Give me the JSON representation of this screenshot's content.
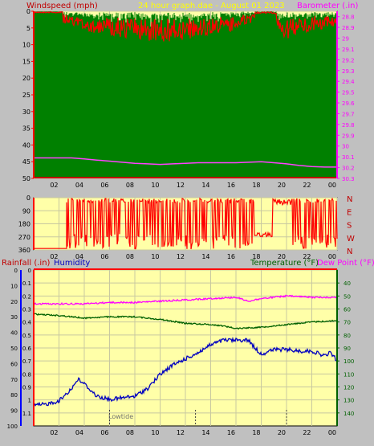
{
  "colors": {
    "background": "#c0c0c0",
    "plot_bg": "#ffffa8",
    "grid": "#c8c8a0",
    "windspeed": "#ff0000",
    "windgust_fill": "#0000ff",
    "windavg_fill": "#008000",
    "barometer": "#ff40ff",
    "direction": "#ff0000",
    "rainfall": "#ff0000",
    "humidity": "#0000c0",
    "temperature": "#006000",
    "dewpoint": "#ff00ff",
    "title": "#ffff00",
    "left_axis_wind": "#ff0000",
    "right_axis_baro": "#ff00ff",
    "rain_axis": "#ff0000",
    "hum_axis": "#0000ff",
    "temp_axis": "#006000"
  },
  "header": {
    "windspeed_label": "Windspeed (mph)",
    "title": "24 hour graph.dae - August 01 2023",
    "barometer_label": "Barometer (.in)"
  },
  "middle": {
    "labels": [
      "Rainfall (.in)",
      "Humidity",
      "Temperature (°F)",
      "Dew Point (°F)"
    ]
  },
  "bottom": {
    "lowtide_label": "Lowtide"
  },
  "chart_data": [
    {
      "id": "wind-baro",
      "type": "line",
      "x_ticks": [
        "02",
        "04",
        "06",
        "08",
        "10",
        "12",
        "14",
        "16",
        "18",
        "20",
        "22",
        "00"
      ],
      "y_left_ticks": [
        "0",
        "5",
        "10",
        "15",
        "20",
        "25",
        "30",
        "35",
        "40",
        "45",
        "50"
      ],
      "ylim_left": [
        0,
        50
      ],
      "y_right_ticks": [
        "28.8",
        "28.9",
        "29",
        "29.1",
        "29.2",
        "29.3",
        "29.4",
        "29.5",
        "29.6",
        "29.7",
        "29.8",
        "29.9",
        "30",
        "30.1",
        "30.2",
        "30.3"
      ],
      "ylim_right": [
        28.75,
        30.3
      ],
      "xlim": [
        0,
        24
      ],
      "series": [
        {
          "name": "Windspeed (mph)",
          "axis": "left",
          "envelope": [
            [
              0,
              1
            ],
            [
              2,
              3
            ],
            [
              4,
              5
            ],
            [
              6,
              6
            ],
            [
              8,
              7
            ],
            [
              10,
              8
            ],
            [
              12,
              7
            ],
            [
              14,
              6
            ],
            [
              16,
              5
            ],
            [
              18,
              2
            ],
            [
              20,
              7
            ],
            [
              22,
              5
            ],
            [
              24,
              4
            ]
          ]
        },
        {
          "name": "Barometer (.in)",
          "axis": "right",
          "x": [
            0,
            1,
            2,
            3,
            4,
            5,
            6,
            7,
            8,
            9,
            10,
            11,
            12,
            13,
            14,
            15,
            16,
            17,
            18,
            19,
            20,
            21,
            22,
            23,
            24
          ],
          "values": [
            30.11,
            30.11,
            30.11,
            30.11,
            30.12,
            30.13,
            30.14,
            30.15,
            30.16,
            30.165,
            30.17,
            30.165,
            30.16,
            30.155,
            30.155,
            30.155,
            30.155,
            30.15,
            30.145,
            30.155,
            30.165,
            30.18,
            30.19,
            30.195,
            30.195
          ]
        }
      ]
    },
    {
      "id": "direction",
      "type": "line",
      "x_ticks": [
        "02",
        "04",
        "06",
        "08",
        "10",
        "12",
        "14",
        "16",
        "18",
        "20",
        "22",
        "00"
      ],
      "y_ticks": [
        "0",
        "90",
        "180",
        "270",
        "360"
      ],
      "ylim": [
        0,
        360
      ],
      "compass_labels": [
        "N",
        "W",
        "S",
        "E",
        "N"
      ]
    },
    {
      "id": "rain-hum-temp",
      "type": "line",
      "x_ticks": [
        "02",
        "04",
        "06",
        "08",
        "10",
        "12",
        "14",
        "16",
        "18",
        "20",
        "22",
        "00"
      ],
      "humidity_ticks": [
        "0",
        "10",
        "20",
        "30",
        "40",
        "50",
        "60",
        "70",
        "80",
        "90",
        "100"
      ],
      "rain_ticks": [
        "0",
        "0.1",
        "0.2",
        "0.3",
        "0.4",
        "0.5",
        "0.6",
        "0.7",
        "0.8",
        "0.9",
        "1",
        "1.1"
      ],
      "temp_ticks": [
        "40",
        "50",
        "60",
        "70",
        "80",
        "90",
        "100",
        "110",
        "120",
        "130",
        "140"
      ],
      "ylim_humidity": [
        0,
        100
      ],
      "ylim_rain": [
        0,
        1.2
      ],
      "ylim_temp": [
        30,
        150
      ],
      "xlim": [
        0,
        24
      ],
      "series": [
        {
          "name": "Humidity",
          "axis": "humidity",
          "x": [
            0,
            1,
            2,
            3,
            3.5,
            4,
            5,
            6,
            7,
            8,
            9,
            10,
            11,
            12,
            13,
            14,
            15,
            16,
            17,
            17.5,
            18,
            19,
            20,
            21,
            22,
            23,
            23.5,
            24
          ],
          "values": [
            87,
            86,
            84,
            76,
            70,
            73,
            81,
            83,
            82,
            81,
            76,
            67,
            61,
            57,
            53,
            48,
            45,
            45,
            45,
            50,
            54,
            51,
            51,
            52,
            52,
            55,
            53,
            58
          ]
        },
        {
          "name": "Temperature (°F)",
          "axis": "temp",
          "x": [
            0,
            2,
            4,
            6,
            8,
            10,
            12,
            14,
            15,
            16,
            18,
            20,
            22,
            24
          ],
          "values": [
            64,
            65,
            67,
            66,
            66,
            68,
            71,
            72,
            73,
            75,
            74,
            72,
            70,
            69
          ]
        },
        {
          "name": "Dew Point (°F)",
          "axis": "temp",
          "x": [
            0,
            2,
            4,
            6,
            8,
            10,
            12,
            14,
            16,
            17,
            18,
            20,
            22,
            24
          ],
          "values": [
            56,
            56,
            56,
            55,
            55,
            54,
            53,
            52,
            51,
            54,
            52,
            50,
            51,
            51
          ]
        },
        {
          "name": "Rainfall (.in)",
          "axis": "rain",
          "x": [
            0,
            24
          ],
          "values": [
            0,
            0
          ]
        }
      ],
      "tide_markers": [
        6,
        12.8,
        20
      ]
    }
  ]
}
